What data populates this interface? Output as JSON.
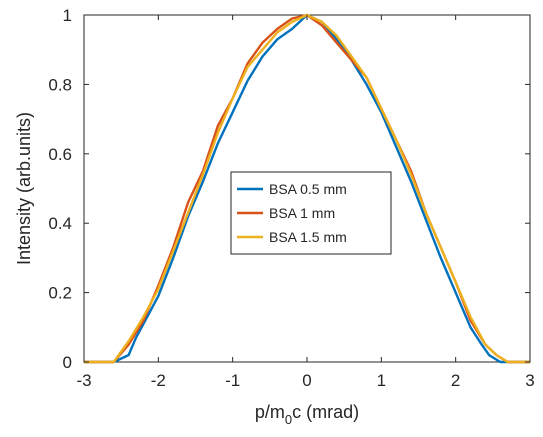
{
  "chart_data": {
    "type": "line",
    "xlabel_main": "p/m",
    "xlabel_sub": "0",
    "xlabel_tail": "c (mrad)",
    "ylabel": "Intensity (arb.units)",
    "xlim": [
      -3,
      3
    ],
    "ylim": [
      0,
      1
    ],
    "x_ticks": [
      -3,
      -2,
      -1,
      0,
      1,
      2,
      3
    ],
    "y_ticks": [
      0,
      0.2,
      0.4,
      0.6,
      0.8,
      1
    ],
    "x_tick_labels": [
      "-3",
      "-2",
      "-1",
      "0",
      "1",
      "2",
      "3"
    ],
    "y_tick_labels": [
      "0",
      "0.2",
      "0.4",
      "0.6",
      "0.8",
      "1"
    ],
    "legend_position": "center",
    "grid": false,
    "series": [
      {
        "name": "BSA 0.5 mm",
        "color": "#0072BD",
        "points": [
          [
            -3.0,
            0.0
          ],
          [
            -2.6,
            0.0
          ],
          [
            -2.4,
            0.02
          ],
          [
            -2.3,
            0.07
          ],
          [
            -2.2,
            0.11
          ],
          [
            -2.0,
            0.19
          ],
          [
            -1.8,
            0.3
          ],
          [
            -1.6,
            0.42
          ],
          [
            -1.4,
            0.52
          ],
          [
            -1.2,
            0.63
          ],
          [
            -1.0,
            0.72
          ],
          [
            -0.8,
            0.81
          ],
          [
            -0.6,
            0.88
          ],
          [
            -0.4,
            0.93
          ],
          [
            -0.2,
            0.96
          ],
          [
            0.0,
            1.0
          ],
          [
            0.2,
            0.98
          ],
          [
            0.4,
            0.93
          ],
          [
            0.6,
            0.87
          ],
          [
            0.8,
            0.8
          ],
          [
            1.0,
            0.72
          ],
          [
            1.2,
            0.62
          ],
          [
            1.4,
            0.52
          ],
          [
            1.6,
            0.41
          ],
          [
            1.8,
            0.3
          ],
          [
            2.0,
            0.2
          ],
          [
            2.2,
            0.1
          ],
          [
            2.35,
            0.05
          ],
          [
            2.45,
            0.02
          ],
          [
            2.6,
            0.0
          ],
          [
            3.0,
            0.0
          ]
        ]
      },
      {
        "name": "BSA 1 mm",
        "color": "#D95319",
        "points": [
          [
            -3.0,
            0.0
          ],
          [
            -2.6,
            0.0
          ],
          [
            -2.4,
            0.05
          ],
          [
            -2.2,
            0.12
          ],
          [
            -2.0,
            0.22
          ],
          [
            -1.8,
            0.33
          ],
          [
            -1.6,
            0.46
          ],
          [
            -1.4,
            0.55
          ],
          [
            -1.2,
            0.68
          ],
          [
            -1.0,
            0.76
          ],
          [
            -0.8,
            0.86
          ],
          [
            -0.6,
            0.92
          ],
          [
            -0.4,
            0.96
          ],
          [
            -0.2,
            0.99
          ],
          [
            0.0,
            1.0
          ],
          [
            0.2,
            0.97
          ],
          [
            0.4,
            0.92
          ],
          [
            0.6,
            0.87
          ],
          [
            0.8,
            0.82
          ],
          [
            1.0,
            0.73
          ],
          [
            1.2,
            0.64
          ],
          [
            1.4,
            0.55
          ],
          [
            1.6,
            0.43
          ],
          [
            1.8,
            0.33
          ],
          [
            2.0,
            0.23
          ],
          [
            2.2,
            0.12
          ],
          [
            2.4,
            0.05
          ],
          [
            2.55,
            0.02
          ],
          [
            2.7,
            0.0
          ],
          [
            3.0,
            0.0
          ]
        ]
      },
      {
        "name": "BSA 1.5 mm",
        "color": "#EDB120",
        "points": [
          [
            -3.0,
            0.0
          ],
          [
            -2.6,
            0.0
          ],
          [
            -2.4,
            0.06
          ],
          [
            -2.2,
            0.13
          ],
          [
            -2.0,
            0.21
          ],
          [
            -1.8,
            0.32
          ],
          [
            -1.6,
            0.43
          ],
          [
            -1.4,
            0.54
          ],
          [
            -1.2,
            0.66
          ],
          [
            -1.0,
            0.76
          ],
          [
            -0.8,
            0.85
          ],
          [
            -0.6,
            0.9
          ],
          [
            -0.4,
            0.95
          ],
          [
            -0.2,
            0.98
          ],
          [
            0.0,
            1.0
          ],
          [
            0.2,
            0.98
          ],
          [
            0.4,
            0.94
          ],
          [
            0.6,
            0.88
          ],
          [
            0.8,
            0.82
          ],
          [
            1.0,
            0.73
          ],
          [
            1.2,
            0.64
          ],
          [
            1.4,
            0.54
          ],
          [
            1.6,
            0.43
          ],
          [
            1.8,
            0.33
          ],
          [
            2.0,
            0.23
          ],
          [
            2.2,
            0.13
          ],
          [
            2.4,
            0.05
          ],
          [
            2.55,
            0.02
          ],
          [
            2.7,
            0.0
          ],
          [
            3.0,
            0.0
          ]
        ]
      }
    ]
  }
}
